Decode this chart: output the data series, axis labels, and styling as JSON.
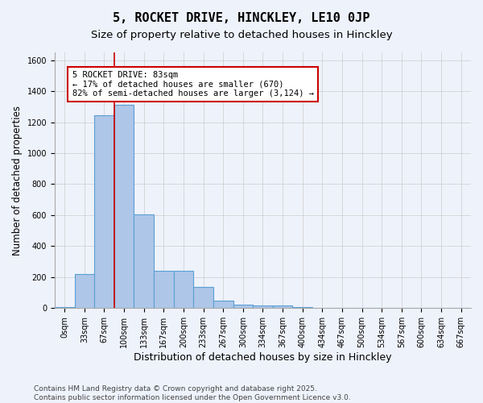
{
  "title": "5, ROCKET DRIVE, HINCKLEY, LE10 0JP",
  "subtitle": "Size of property relative to detached houses in Hinckley",
  "xlabel": "Distribution of detached houses by size in Hinckley",
  "ylabel": "Number of detached properties",
  "bar_values": [
    5,
    220,
    1245,
    1310,
    605,
    240,
    240,
    135,
    50,
    25,
    20,
    20,
    5,
    0,
    0,
    0,
    0,
    0,
    0,
    0,
    0
  ],
  "bar_labels": [
    "0sqm",
    "33sqm",
    "67sqm",
    "100sqm",
    "133sqm",
    "167sqm",
    "200sqm",
    "233sqm",
    "267sqm",
    "300sqm",
    "334sqm",
    "367sqm",
    "400sqm",
    "434sqm",
    "467sqm",
    "500sqm",
    "534sqm",
    "567sqm",
    "600sqm",
    "634sqm",
    "667sqm"
  ],
  "bar_color": "#aec6e8",
  "bar_edge_color": "#5a9fd4",
  "bar_edge_width": 0.8,
  "ylim": [
    0,
    1650
  ],
  "yticks": [
    0,
    200,
    400,
    600,
    800,
    1000,
    1200,
    1400,
    1600
  ],
  "property_line_x": 2.5,
  "property_line_color": "#cc0000",
  "annotation_text": "5 ROCKET DRIVE: 83sqm\n← 17% of detached houses are smaller (670)\n82% of semi-detached houses are larger (3,124) →",
  "annotation_box_color": "#ffffff",
  "annotation_box_edge_color": "#cc0000",
  "grid_color": "#cccccc",
  "background_color": "#eef2fb",
  "footer_text": "Contains HM Land Registry data © Crown copyright and database right 2025.\nContains public sector information licensed under the Open Government Licence v3.0.",
  "title_fontsize": 11,
  "subtitle_fontsize": 9.5,
  "xlabel_fontsize": 9,
  "ylabel_fontsize": 8.5,
  "tick_fontsize": 7,
  "footer_fontsize": 6.5
}
